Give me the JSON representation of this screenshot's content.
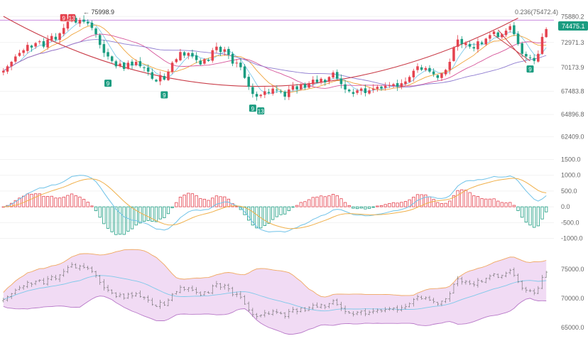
{
  "colors": {
    "up": "#e5434f",
    "down": "#1a9c80",
    "ma_fast": "#7ec9ea",
    "ma_mid": "#f0a43c",
    "ma_slow": "#d6559a",
    "ma_long": "#8e7bd0",
    "fib": "#c98adf",
    "arc": "#c93c48",
    "macd_line": "#6fc2e8",
    "signal_line": "#f0b04a",
    "boll_fill": "#eccff0",
    "boll_upper": "#f0a860",
    "boll_lower": "#b878c8",
    "boll_mid": "#7ec9ea",
    "axis_text": "#666666",
    "badge": "#1a9c80",
    "badge_red": "#e5434f"
  },
  "annotations": {
    "high_label": "← 75998.9",
    "fib_label": "0.236(75472.4)",
    "current_price": "74475.1",
    "td_up": [
      "9",
      "13"
    ],
    "td_down": [
      "9",
      "9",
      "9",
      "13",
      "9"
    ]
  },
  "chart_data": [
    {
      "type": "candlestick",
      "title": "",
      "y_axis_ticks": [
        "75880.2",
        "72971.3",
        "70173.9",
        "67483.8",
        "64896.8",
        "62409.0"
      ],
      "ylim": [
        61800,
        76300
      ],
      "current_price": 74475.1,
      "fib_level": 75472.4,
      "high": 75998.9,
      "closes": [
        69800,
        70300,
        70800,
        71400,
        71800,
        72100,
        72700,
        72400,
        72900,
        73100,
        72500,
        73300,
        73700,
        73300,
        74000,
        74600,
        75300,
        75800,
        75200,
        75500,
        75300,
        75100,
        74600,
        73900,
        72700,
        71800,
        71400,
        70900,
        70300,
        70600,
        70000,
        70700,
        70400,
        70800,
        70300,
        70100,
        69700,
        68900,
        68600,
        69300,
        68800,
        69700,
        70700,
        71100,
        71900,
        71500,
        71800,
        71400,
        71000,
        70500,
        71100,
        70900,
        72100,
        72500,
        71900,
        72200,
        71600,
        70600,
        70700,
        70200,
        69000,
        68000,
        67200,
        66900,
        67100,
        67500,
        67300,
        67800,
        67600,
        67400,
        66900,
        67700,
        68100,
        67700,
        68300,
        67900,
        68400,
        68800,
        68500,
        68900,
        68500,
        69100,
        69600,
        68900,
        68300,
        67700,
        67500,
        67200,
        67600,
        67800,
        67300,
        67600,
        67800,
        68000,
        67800,
        68100,
        68200,
        68300,
        68000,
        68400,
        68600,
        69100,
        69800,
        70300,
        69900,
        70100,
        69700,
        69400,
        69000,
        69500,
        69900,
        70800,
        72400,
        73300,
        72800,
        72900,
        72500,
        72300,
        73100,
        72800,
        73400,
        73800,
        74200,
        73600,
        73900,
        74300,
        74800,
        73900,
        72800,
        71700,
        71400,
        71300,
        70900,
        71700,
        73600,
        74475.1
      ]
    },
    {
      "type": "macd",
      "y_axis_ticks": [
        "1500.0",
        "1000.0",
        "500.0",
        "0.0",
        "-500.0",
        "-1000.0"
      ],
      "ylim": [
        -1100,
        1600
      ]
    },
    {
      "type": "bollinger",
      "y_axis_ticks": [
        "75000.0",
        "70000.0",
        "65000.0"
      ],
      "ylim": [
        64500,
        78500
      ]
    }
  ]
}
